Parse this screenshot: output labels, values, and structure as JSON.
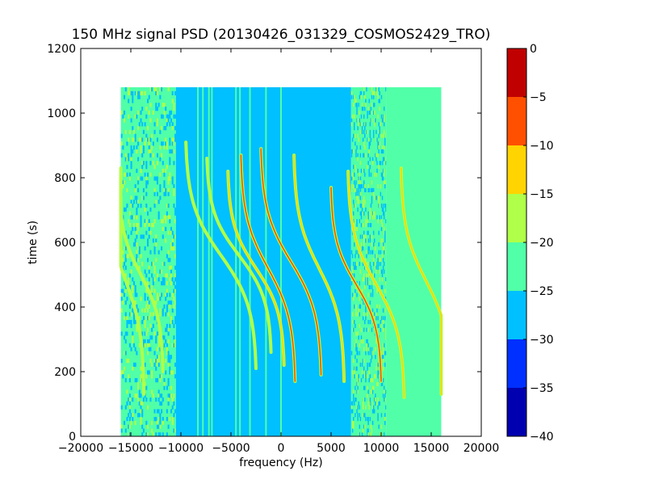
{
  "chart_data": {
    "type": "heatmap",
    "title": "150 MHz signal PSD (20130426_031329_COSMOS2429_TRO)",
    "xlabel": "frequency (Hz)",
    "ylabel": "time (s)",
    "xlim": [
      -20000,
      20000
    ],
    "ylim": [
      0,
      1200
    ],
    "xticks": [
      -20000,
      -15000,
      -10000,
      -5000,
      0,
      5000,
      10000,
      15000,
      20000
    ],
    "xtick_labels": [
      "−20000",
      "−15000",
      "−10000",
      "−5000",
      "0",
      "5000",
      "10000",
      "15000",
      "20000"
    ],
    "yticks": [
      0,
      200,
      400,
      600,
      800,
      1000,
      1200
    ],
    "ytick_labels": [
      "0",
      "200",
      "400",
      "600",
      "800",
      "1000",
      "1200"
    ],
    "data_extent": {
      "freq_min": -16000,
      "freq_max": 16000,
      "time_min": 0,
      "time_max": 1080
    },
    "colorbar": {
      "levels": [
        -40,
        -35,
        -30,
        -25,
        -20,
        -15,
        -10,
        -5,
        0
      ],
      "tick_labels": [
        "−40",
        "−35",
        "−30",
        "−25",
        "−20",
        "−15",
        "−10",
        "−5",
        "0"
      ],
      "colors": [
        "#0000b0",
        "#0030ff",
        "#00c0ff",
        "#50ffa8",
        "#b0ff48",
        "#ffd400",
        "#ff5000",
        "#c00000"
      ]
    },
    "background_bands": [
      {
        "from": -16000,
        "to": -10500,
        "level": -22,
        "note": "noisy"
      },
      {
        "from": -10500,
        "to": 7000,
        "level": -28
      },
      {
        "from": 7000,
        "to": 10500,
        "level": -22,
        "note": "noisy"
      },
      {
        "from": 10500,
        "to": 16000,
        "level": -22
      }
    ],
    "vertical_lines": [
      -8300,
      -7800,
      -7200,
      -6900,
      -4500,
      -4100,
      -3100,
      -1500,
      0
    ],
    "traces": [
      {
        "center_freq": -15500,
        "center_time": 480,
        "half_span": 1800,
        "time_span": 700,
        "peak_level": -17
      },
      {
        "center_freq": -14000,
        "center_time": 500,
        "half_span": 2200,
        "time_span": 600,
        "peak_level": -17
      },
      {
        "center_freq": -6000,
        "center_time": 560,
        "half_span": 3500,
        "time_span": 700,
        "peak_level": -20
      },
      {
        "center_freq": -4200,
        "center_time": 560,
        "half_span": 3200,
        "time_span": 600,
        "peak_level": -18
      },
      {
        "center_freq": -2500,
        "center_time": 520,
        "half_span": 2800,
        "time_span": 600,
        "peak_level": -12
      },
      {
        "center_freq": -1300,
        "center_time": 520,
        "half_span": 2700,
        "time_span": 700,
        "peak_level": -10
      },
      {
        "center_freq": 1000,
        "center_time": 540,
        "half_span": 3000,
        "time_span": 700,
        "peak_level": -8
      },
      {
        "center_freq": 3800,
        "center_time": 520,
        "half_span": 2500,
        "time_span": 700,
        "peak_level": -12
      },
      {
        "center_freq": 7500,
        "center_time": 470,
        "half_span": 2500,
        "time_span": 600,
        "peak_level": -7
      },
      {
        "center_freq": 9500,
        "center_time": 470,
        "half_span": 2800,
        "time_span": 700,
        "peak_level": -15
      },
      {
        "center_freq": 14500,
        "center_time": 480,
        "half_span": 2500,
        "time_span": 700,
        "peak_level": -15
      }
    ]
  }
}
